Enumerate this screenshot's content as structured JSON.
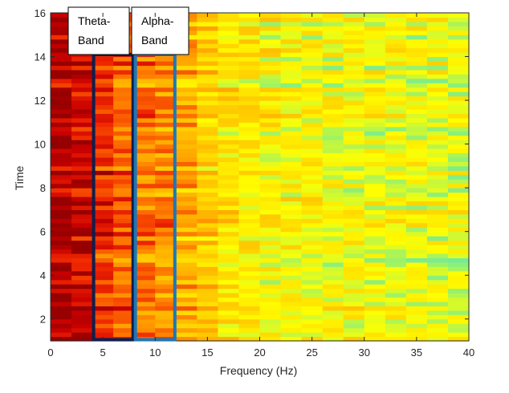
{
  "chart_data": {
    "type": "heatmap",
    "title": "",
    "xlabel": "Frequency (Hz)",
    "ylabel": "Time",
    "xlim": [
      0,
      40
    ],
    "ylim": [
      1,
      16
    ],
    "x_ticks": [
      0,
      5,
      10,
      15,
      20,
      25,
      30,
      35,
      40
    ],
    "y_ticks": [
      2,
      4,
      6,
      8,
      10,
      12,
      14,
      16
    ],
    "x_tick_labels": [
      "0",
      "5",
      "10",
      "15",
      "20",
      "25",
      "30",
      "35",
      "40"
    ],
    "y_tick_labels": [
      "2",
      "4",
      "6",
      "8",
      "10",
      "12",
      "14",
      "16"
    ],
    "colormap": "autumn (red = high power, yellow/green/cyan = low power)",
    "grid": false,
    "frequency_bin_hz": 2,
    "time_rows": 75,
    "power_profile_by_frequency": [
      {
        "hz": 1,
        "level": 0.95
      },
      {
        "hz": 3,
        "level": 0.9
      },
      {
        "hz": 5,
        "level": 0.8
      },
      {
        "hz": 7,
        "level": 0.7
      },
      {
        "hz": 9,
        "level": 0.68
      },
      {
        "hz": 11,
        "level": 0.62
      },
      {
        "hz": 13,
        "level": 0.55
      },
      {
        "hz": 15,
        "level": 0.45
      },
      {
        "hz": 17,
        "level": 0.4
      },
      {
        "hz": 19,
        "level": 0.38
      },
      {
        "hz": 21,
        "level": 0.36
      },
      {
        "hz": 23,
        "level": 0.35
      },
      {
        "hz": 25,
        "level": 0.34
      },
      {
        "hz": 27,
        "level": 0.33
      },
      {
        "hz": 29,
        "level": 0.33
      },
      {
        "hz": 31,
        "level": 0.32
      },
      {
        "hz": 33,
        "level": 0.32
      },
      {
        "hz": 35,
        "level": 0.31
      },
      {
        "hz": 37,
        "level": 0.31
      },
      {
        "hz": 39,
        "level": 0.3
      }
    ],
    "annotations": [
      {
        "label_lines": [
          "Theta-",
          "Band"
        ],
        "x_range": [
          4,
          8
        ],
        "box_color": "#0d1f4f"
      },
      {
        "label_lines": [
          "Alpha-",
          "Band"
        ],
        "x_range": [
          8,
          12
        ],
        "box_color": "#1f77b4"
      }
    ]
  }
}
